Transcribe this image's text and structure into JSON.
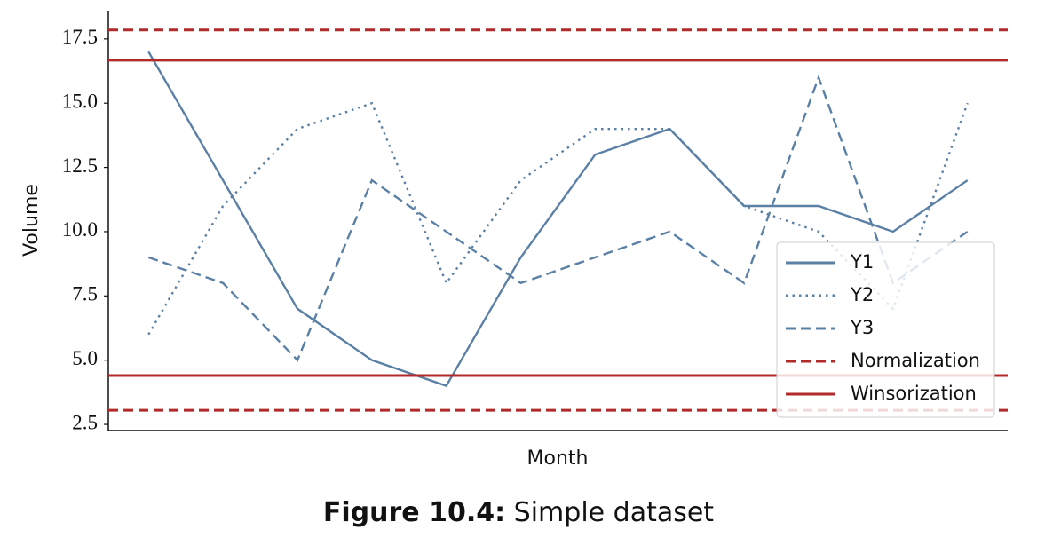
{
  "chart_data": {
    "type": "line",
    "xlabel": "Month",
    "ylabel": "Volume",
    "caption": {
      "label": "Figure 10.4:",
      "text": "Simple dataset"
    },
    "categories": [
      null,
      null,
      null,
      null,
      null,
      null,
      null,
      null,
      null,
      null,
      null,
      null
    ],
    "series": [
      {
        "name": "Y1",
        "color": "#5b80a5",
        "style": "solid",
        "values": [
          17,
          12,
          7,
          5,
          4,
          9,
          13,
          14,
          11,
          11,
          10,
          12
        ]
      },
      {
        "name": "Y2",
        "color": "#5b80a5",
        "style": "dotted",
        "values": [
          6,
          11,
          14,
          15,
          8,
          12,
          14,
          14,
          11,
          10,
          7,
          15
        ]
      },
      {
        "name": "Y3",
        "color": "#5b80a5",
        "style": "dashed",
        "values": [
          9,
          8,
          5,
          12,
          10,
          8,
          9,
          10,
          8,
          16,
          8,
          10
        ]
      }
    ],
    "hlines": [
      {
        "name": "Normalization",
        "color": "#b22a2a",
        "style": "dashed",
        "values": [
          17.85,
          3.05
        ]
      },
      {
        "name": "Winsorization",
        "color": "#b22a2a",
        "style": "solid",
        "values": [
          16.67,
          4.4
        ]
      }
    ],
    "ylim": [
      2.26,
      18.6
    ],
    "yticks": [
      2.5,
      {
        "value": 5,
        "label": "5.0"
      },
      7.5,
      {
        "value": 10,
        "label": "10.0"
      },
      12.5,
      {
        "value": 15,
        "label": "15.0"
      },
      17.5
    ],
    "legend": "lower right",
    "grid": false
  }
}
